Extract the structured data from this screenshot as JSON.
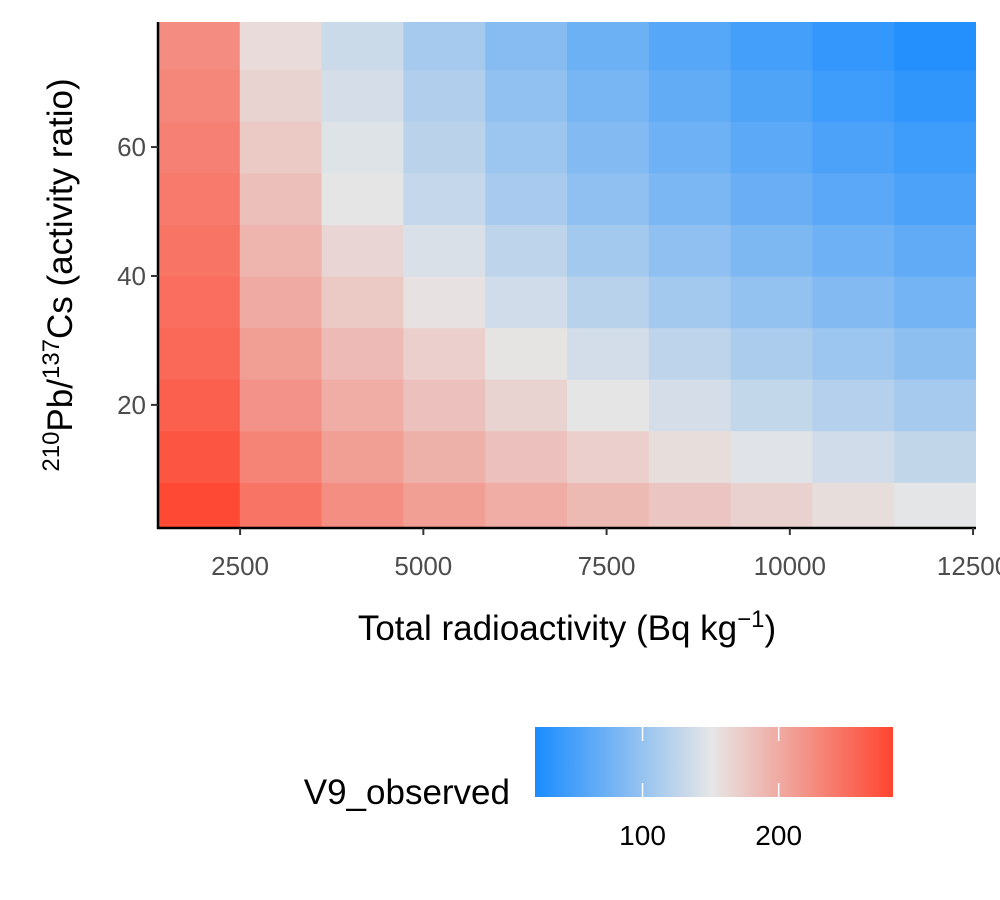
{
  "chart_data": {
    "type": "heatmap",
    "xlabel": [
      "Total radioactivity (Bq kg",
      "−1",
      ")"
    ],
    "ylabel": [
      "210",
      "Pb/",
      "137",
      "Cs (activity ratio)"
    ],
    "x": [
      1938,
      3054,
      4170,
      5286,
      6402,
      7518,
      8634,
      9750,
      10866,
      11982
    ],
    "y": [
      4,
      12,
      20,
      28,
      36,
      44,
      52,
      60,
      68,
      76
    ],
    "z": [
      [
        280,
        245,
        224,
        210,
        198,
        188,
        178,
        168,
        158,
        150
      ],
      [
        270,
        232,
        210,
        195,
        182,
        170,
        158,
        147,
        137,
        128
      ],
      [
        262,
        220,
        198,
        182,
        167,
        152,
        140,
        129,
        119,
        110
      ],
      [
        255,
        210,
        187,
        170,
        153,
        138,
        125,
        114,
        104,
        95
      ],
      [
        250,
        200,
        175,
        155,
        137,
        122,
        109,
        98,
        88,
        79
      ],
      [
        245,
        192,
        165,
        143,
        125,
        109,
        96,
        85,
        75,
        66
      ],
      [
        240,
        183,
        152,
        130,
        111,
        96,
        83,
        72,
        62,
        53
      ],
      [
        235,
        175,
        146,
        123,
        104,
        88,
        75,
        63,
        53,
        44
      ],
      [
        230,
        167,
        140,
        117,
        97,
        81,
        67,
        55,
        44,
        35
      ],
      [
        225,
        160,
        134,
        110,
        90,
        74,
        60,
        48,
        37,
        27
      ]
    ],
    "xlim": [
      1380,
      12540
    ],
    "ylim": [
      0.9,
      79.4
    ],
    "xticks": [
      2500,
      5000,
      7500,
      10000,
      12500
    ],
    "yticks": [
      20,
      40,
      60
    ],
    "colorbar": {
      "title": "V9_observed",
      "limits": [
        21,
        284
      ],
      "midpoint": 151,
      "ticks": [
        100,
        200
      ],
      "low_color": "#1a8cff",
      "mid_color": "#e6e6e6",
      "high_color": "#ff4530"
    }
  }
}
